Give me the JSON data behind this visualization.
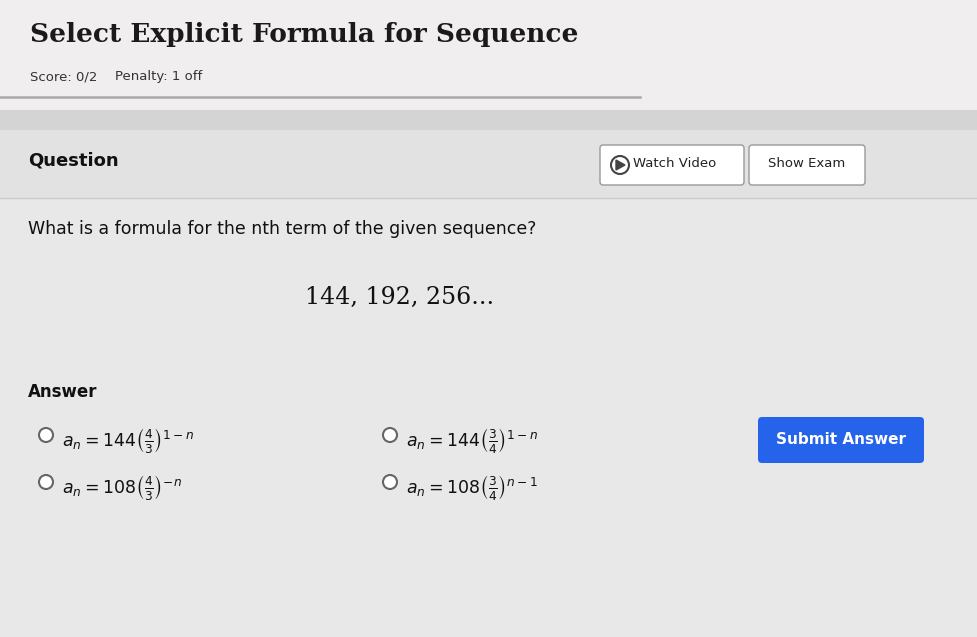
{
  "title": "Select Explicit Formula for Sequence",
  "score_text": "Score: 0/2",
  "penalty_text": "Penalty: 1 off",
  "question_label": "Question",
  "watch_video_text": "Watch Video",
  "show_exam_text": "Show Exam",
  "question_text": "What is a formula for the nth term of the given sequence?",
  "sequence_text": "144, 192, 256...",
  "answer_label": "Answer",
  "answer_options": [
    {
      "left": "$a_n = 144\\left(\\frac{4}{3}\\right)^{1-n}$",
      "right": "$a_n = 144\\left(\\frac{3}{4}\\right)^{1-n}$"
    },
    {
      "left": "$a_n = 108\\left(\\frac{4}{3}\\right)^{-n}$",
      "right": "$a_n = 108\\left(\\frac{3}{4}\\right)^{n-1}$"
    }
  ],
  "submit_button_text": "Submit Answer",
  "submit_button_color": "#2563EB",
  "submit_button_text_color": "#ffffff",
  "bg_outer": "#d4d4d4",
  "bg_header": "#f0eeee",
  "bg_card": "#e8e8e8",
  "bg_card_inner": "#ebebeb",
  "title_color": "#1a1a1a",
  "score_color": "#333333",
  "text_color": "#111111",
  "separator_color": "#aaaaaa",
  "separator2_color": "#cccccc",
  "btn_border": "#999999",
  "radio_color": "#666666"
}
